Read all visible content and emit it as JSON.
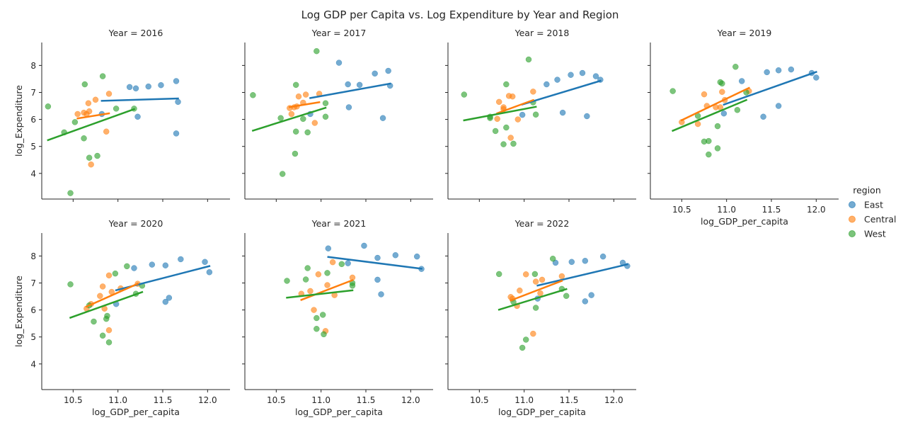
{
  "figure": {
    "title": "Log GDP per Capita vs. Log Expenditure by Year and Region",
    "panel_title_prefix": "Year = "
  },
  "legend": {
    "title": "region",
    "entries": [
      {
        "name": "East",
        "color": "#1f77b4"
      },
      {
        "name": "Central",
        "color": "#ff7f0e"
      },
      {
        "name": "West",
        "color": "#2ca02c"
      }
    ]
  },
  "chart_data": {
    "type": "scatter",
    "xlabel": "log_GDP_per_capita",
    "ylabel": "log_Expenditure",
    "xlim": [
      10.15,
      12.25
    ],
    "ylim": [
      3.05,
      8.85
    ],
    "xticks": [
      10.5,
      11.0,
      11.5,
      12.0
    ],
    "yticks": [
      4,
      5,
      6,
      7,
      8
    ],
    "xtick_labels": [
      "10.5",
      "11.0",
      "11.5",
      "12.0"
    ],
    "ytick_labels": [
      "4",
      "5",
      "6",
      "7",
      "8"
    ],
    "trend_lines": "linear fit per region",
    "panels": [
      {
        "year": "2016",
        "series": [
          {
            "name": "East",
            "points": [
              [
                10.82,
                6.2
              ],
              [
                11.13,
                7.2
              ],
              [
                11.2,
                7.15
              ],
              [
                11.34,
                7.22
              ],
              [
                11.48,
                7.27
              ],
              [
                11.65,
                7.42
              ],
              [
                11.22,
                6.1
              ],
              [
                11.67,
                6.65
              ],
              [
                11.65,
                5.48
              ]
            ]
          },
          {
            "name": "Central",
            "points": [
              [
                10.55,
                6.2
              ],
              [
                10.62,
                6.25
              ],
              [
                10.65,
                6.2
              ],
              [
                10.68,
                6.3
              ],
              [
                10.67,
                6.6
              ],
              [
                10.75,
                6.73
              ],
              [
                10.9,
                6.95
              ],
              [
                10.87,
                5.55
              ],
              [
                10.7,
                4.33
              ]
            ]
          },
          {
            "name": "West",
            "points": [
              [
                10.22,
                6.48
              ],
              [
                10.4,
                5.52
              ],
              [
                10.52,
                5.9
              ],
              [
                10.63,
                7.3
              ],
              [
                10.83,
                7.6
              ],
              [
                10.98,
                6.4
              ],
              [
                11.18,
                6.4
              ],
              [
                10.62,
                5.3
              ],
              [
                10.68,
                4.58
              ],
              [
                10.77,
                4.65
              ],
              [
                10.47,
                3.27
              ]
            ]
          }
        ]
      },
      {
        "year": "2017",
        "series": [
          {
            "name": "East",
            "points": [
              [
                10.88,
                6.2
              ],
              [
                11.2,
                8.1
              ],
              [
                11.3,
                7.3
              ],
              [
                11.43,
                7.28
              ],
              [
                11.6,
                7.7
              ],
              [
                11.75,
                7.8
              ],
              [
                11.77,
                7.25
              ],
              [
                11.31,
                6.45
              ],
              [
                11.69,
                6.05
              ]
            ]
          },
          {
            "name": "Central",
            "points": [
              [
                10.65,
                6.42
              ],
              [
                10.67,
                6.2
              ],
              [
                10.7,
                6.45
              ],
              [
                10.73,
                6.48
              ],
              [
                10.75,
                6.85
              ],
              [
                10.8,
                6.62
              ],
              [
                10.83,
                6.92
              ],
              [
                10.98,
                6.95
              ],
              [
                10.93,
                5.87
              ]
            ]
          },
          {
            "name": "West",
            "points": [
              [
                10.24,
                6.9
              ],
              [
                10.55,
                6.05
              ],
              [
                10.72,
                7.28
              ],
              [
                10.95,
                8.53
              ],
              [
                10.8,
                6.02
              ],
              [
                11.05,
                6.6
              ],
              [
                11.05,
                6.1
              ],
              [
                10.72,
                5.55
              ],
              [
                10.85,
                5.52
              ],
              [
                10.71,
                4.73
              ],
              [
                10.57,
                3.98
              ]
            ]
          }
        ]
      },
      {
        "year": "2018",
        "series": [
          {
            "name": "East",
            "points": [
              [
                10.98,
                6.17
              ],
              [
                11.25,
                7.3
              ],
              [
                11.37,
                7.47
              ],
              [
                11.52,
                7.65
              ],
              [
                11.65,
                7.72
              ],
              [
                11.8,
                7.6
              ],
              [
                11.85,
                7.47
              ],
              [
                11.43,
                6.25
              ],
              [
                11.7,
                6.12
              ]
            ]
          },
          {
            "name": "Central",
            "points": [
              [
                10.7,
                6.02
              ],
              [
                10.72,
                6.65
              ],
              [
                10.77,
                6.45
              ],
              [
                10.77,
                6.38
              ],
              [
                10.83,
                6.87
              ],
              [
                10.87,
                6.85
              ],
              [
                10.93,
                6.0
              ],
              [
                11.1,
                7.03
              ],
              [
                10.85,
                5.32
              ]
            ]
          },
          {
            "name": "West",
            "points": [
              [
                10.33,
                6.92
              ],
              [
                10.62,
                6.1
              ],
              [
                10.62,
                6.05
              ],
              [
                10.8,
                7.3
              ],
              [
                11.05,
                8.22
              ],
              [
                11.1,
                6.63
              ],
              [
                11.13,
                6.18
              ],
              [
                10.68,
                5.57
              ],
              [
                10.8,
                5.7
              ],
              [
                10.77,
                5.08
              ],
              [
                10.88,
                5.1
              ]
            ]
          }
        ]
      },
      {
        "year": "2019",
        "series": [
          {
            "name": "East",
            "points": [
              [
                10.97,
                6.22
              ],
              [
                11.17,
                7.42
              ],
              [
                11.45,
                7.75
              ],
              [
                11.58,
                7.82
              ],
              [
                11.72,
                7.85
              ],
              [
                11.95,
                7.72
              ],
              [
                12.0,
                7.55
              ],
              [
                11.58,
                6.5
              ],
              [
                11.41,
                6.1
              ]
            ]
          },
          {
            "name": "Central",
            "points": [
              [
                10.5,
                5.9
              ],
              [
                10.68,
                5.83
              ],
              [
                10.75,
                6.93
              ],
              [
                10.78,
                6.5
              ],
              [
                10.88,
                6.45
              ],
              [
                10.95,
                7.02
              ],
              [
                10.98,
                6.72
              ],
              [
                11.25,
                7.05
              ],
              [
                10.93,
                6.45
              ]
            ]
          },
          {
            "name": "West",
            "points": [
              [
                10.4,
                7.05
              ],
              [
                10.68,
                6.13
              ],
              [
                10.93,
                7.38
              ],
              [
                10.95,
                7.33
              ],
              [
                11.1,
                7.95
              ],
              [
                11.12,
                6.35
              ],
              [
                11.22,
                7.0
              ],
              [
                10.9,
                5.75
              ],
              [
                10.75,
                5.18
              ],
              [
                10.8,
                5.2
              ],
              [
                10.8,
                4.7
              ],
              [
                10.9,
                4.93
              ]
            ]
          }
        ]
      },
      {
        "year": "2020",
        "series": [
          {
            "name": "East",
            "points": [
              [
                10.98,
                6.22
              ],
              [
                11.18,
                7.55
              ],
              [
                11.38,
                7.68
              ],
              [
                11.53,
                7.65
              ],
              [
                11.7,
                7.88
              ],
              [
                11.97,
                7.78
              ],
              [
                12.02,
                7.4
              ],
              [
                11.57,
                6.45
              ],
              [
                11.53,
                6.3
              ]
            ]
          },
          {
            "name": "Central",
            "points": [
              [
                10.65,
                6.05
              ],
              [
                10.7,
                6.22
              ],
              [
                10.8,
                6.52
              ],
              [
                10.83,
                6.87
              ],
              [
                10.9,
                7.28
              ],
              [
                10.93,
                6.67
              ],
              [
                11.03,
                6.8
              ],
              [
                11.22,
                6.97
              ],
              [
                10.85,
                6.05
              ],
              [
                10.9,
                5.25
              ]
            ]
          },
          {
            "name": "West",
            "points": [
              [
                10.47,
                6.95
              ],
              [
                10.68,
                6.17
              ],
              [
                10.97,
                7.35
              ],
              [
                11.1,
                7.62
              ],
              [
                11.2,
                6.6
              ],
              [
                11.27,
                6.9
              ],
              [
                10.73,
                5.57
              ],
              [
                10.87,
                5.67
              ],
              [
                10.88,
                5.78
              ],
              [
                10.83,
                5.05
              ],
              [
                10.9,
                4.8
              ]
            ]
          }
        ]
      },
      {
        "year": "2021",
        "series": [
          {
            "name": "East",
            "points": [
              [
                11.08,
                8.28
              ],
              [
                11.3,
                7.73
              ],
              [
                11.48,
                8.38
              ],
              [
                11.63,
                7.93
              ],
              [
                11.83,
                8.03
              ],
              [
                12.07,
                7.98
              ],
              [
                12.12,
                7.52
              ],
              [
                11.63,
                7.12
              ],
              [
                11.67,
                6.58
              ]
            ]
          },
          {
            "name": "Central",
            "points": [
              [
                10.78,
                6.6
              ],
              [
                10.88,
                6.7
              ],
              [
                10.97,
                7.32
              ],
              [
                11.07,
                6.92
              ],
              [
                11.13,
                7.77
              ],
              [
                11.35,
                7.2
              ],
              [
                11.15,
                6.55
              ],
              [
                10.92,
                6.0
              ],
              [
                11.05,
                5.22
              ]
            ]
          },
          {
            "name": "West",
            "points": [
              [
                10.62,
                7.08
              ],
              [
                10.83,
                7.13
              ],
              [
                10.85,
                7.55
              ],
              [
                11.07,
                7.37
              ],
              [
                11.23,
                7.7
              ],
              [
                11.35,
                7.0
              ],
              [
                11.35,
                6.9
              ],
              [
                10.95,
                5.7
              ],
              [
                11.02,
                5.82
              ],
              [
                10.95,
                5.3
              ],
              [
                11.03,
                5.1
              ]
            ]
          }
        ]
      },
      {
        "year": "2022",
        "series": [
          {
            "name": "East",
            "points": [
              [
                11.15,
                6.42
              ],
              [
                11.35,
                7.75
              ],
              [
                11.53,
                7.78
              ],
              [
                11.68,
                7.82
              ],
              [
                11.88,
                7.98
              ],
              [
                12.1,
                7.75
              ],
              [
                12.15,
                7.63
              ],
              [
                11.75,
                6.55
              ],
              [
                11.68,
                6.32
              ]
            ]
          },
          {
            "name": "Central",
            "points": [
              [
                10.85,
                6.48
              ],
              [
                10.87,
                6.42
              ],
              [
                10.92,
                6.15
              ],
              [
                10.95,
                6.72
              ],
              [
                11.02,
                7.32
              ],
              [
                11.13,
                7.05
              ],
              [
                11.18,
                6.62
              ],
              [
                11.2,
                7.12
              ],
              [
                11.42,
                7.25
              ],
              [
                11.1,
                5.12
              ]
            ]
          },
          {
            "name": "West",
            "points": [
              [
                10.72,
                7.33
              ],
              [
                10.88,
                6.3
              ],
              [
                11.12,
                7.33
              ],
              [
                11.13,
                6.08
              ],
              [
                11.32,
                7.9
              ],
              [
                11.42,
                6.78
              ],
              [
                11.47,
                6.52
              ],
              [
                11.02,
                4.9
              ],
              [
                10.98,
                4.6
              ]
            ]
          }
        ]
      }
    ]
  }
}
